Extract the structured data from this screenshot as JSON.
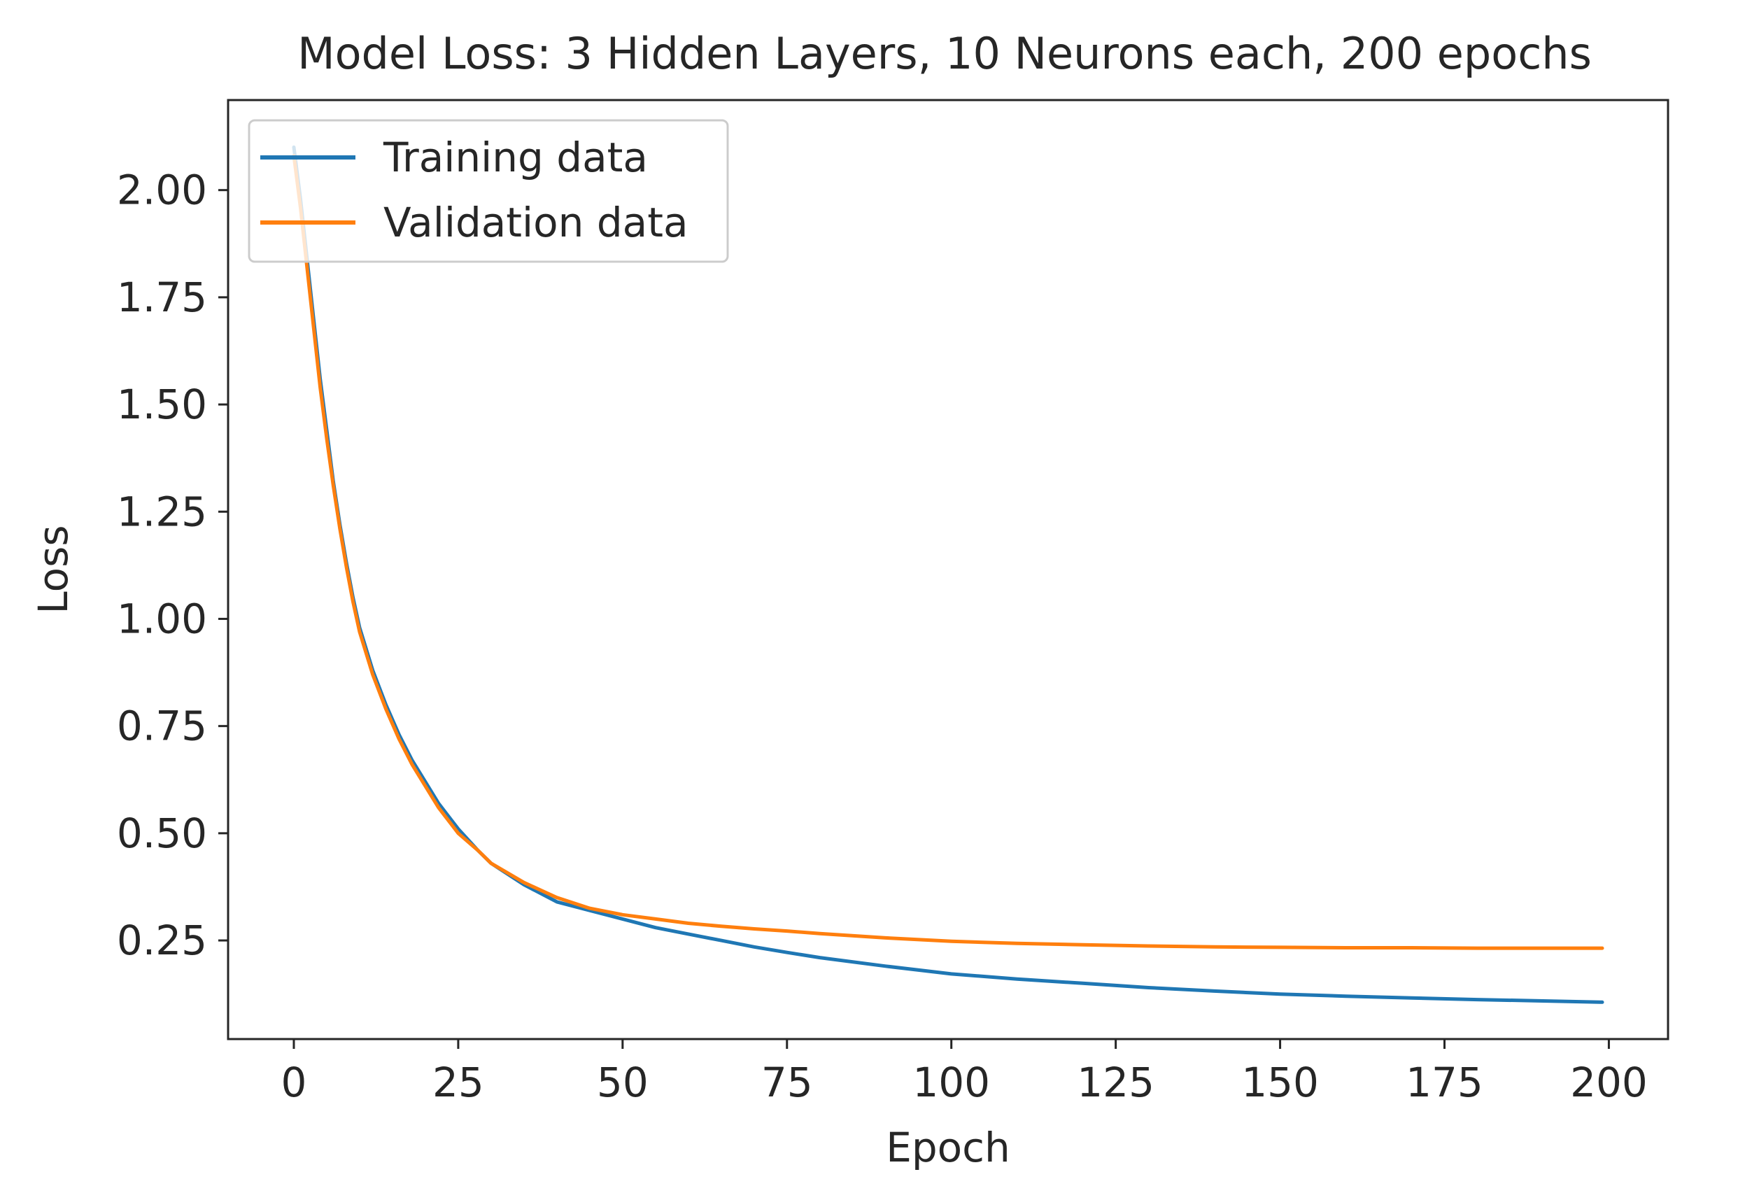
{
  "chart_data": {
    "type": "line",
    "title": "Model Loss: 3 Hidden Layers, 10 Neurons each, 200 epochs",
    "xlabel": "Epoch",
    "ylabel": "Loss",
    "xlim": [
      -10,
      209
    ],
    "ylim": [
      0.02,
      2.21
    ],
    "x_ticks": [
      0,
      25,
      50,
      75,
      100,
      125,
      150,
      175,
      200
    ],
    "x_tick_labels": [
      "0",
      "25",
      "50",
      "75",
      "100",
      "125",
      "150",
      "175",
      "200"
    ],
    "y_ticks": [
      0.25,
      0.5,
      0.75,
      1.0,
      1.25,
      1.5,
      1.75,
      2.0
    ],
    "y_tick_labels": [
      "0.25",
      "0.50",
      "0.75",
      "1.00",
      "1.25",
      "1.50",
      "1.75",
      "2.00"
    ],
    "grid": false,
    "legend_position": "top-left",
    "series": [
      {
        "name": "Training data",
        "color": "#1f77b4",
        "x": [
          0,
          1,
          2,
          3,
          4,
          5,
          6,
          7,
          8,
          9,
          10,
          12,
          14,
          16,
          18,
          20,
          22,
          25,
          28,
          30,
          35,
          40,
          45,
          50,
          55,
          60,
          65,
          70,
          75,
          80,
          90,
          100,
          110,
          120,
          130,
          140,
          150,
          160,
          170,
          180,
          190,
          199
        ],
        "y": [
          2.1,
          1.98,
          1.84,
          1.7,
          1.56,
          1.44,
          1.32,
          1.22,
          1.13,
          1.05,
          0.98,
          0.88,
          0.8,
          0.73,
          0.67,
          0.62,
          0.57,
          0.51,
          0.46,
          0.43,
          0.38,
          0.34,
          0.32,
          0.3,
          0.28,
          0.265,
          0.25,
          0.235,
          0.222,
          0.21,
          0.19,
          0.172,
          0.16,
          0.15,
          0.14,
          0.132,
          0.125,
          0.12,
          0.116,
          0.112,
          0.109,
          0.106
        ]
      },
      {
        "name": "Validation data",
        "color": "#ff7f0e",
        "x": [
          0,
          1,
          2,
          3,
          4,
          5,
          6,
          7,
          8,
          9,
          10,
          12,
          14,
          16,
          18,
          20,
          22,
          25,
          28,
          30,
          35,
          40,
          45,
          50,
          55,
          60,
          65,
          70,
          75,
          80,
          90,
          100,
          110,
          120,
          130,
          140,
          150,
          160,
          170,
          180,
          190,
          199
        ],
        "y": [
          2.08,
          1.96,
          1.82,
          1.68,
          1.54,
          1.42,
          1.31,
          1.21,
          1.12,
          1.04,
          0.97,
          0.87,
          0.79,
          0.72,
          0.66,
          0.61,
          0.56,
          0.5,
          0.46,
          0.43,
          0.385,
          0.35,
          0.325,
          0.31,
          0.3,
          0.29,
          0.283,
          0.277,
          0.272,
          0.266,
          0.256,
          0.248,
          0.243,
          0.24,
          0.237,
          0.235,
          0.234,
          0.233,
          0.233,
          0.232,
          0.232,
          0.232
        ]
      }
    ]
  }
}
